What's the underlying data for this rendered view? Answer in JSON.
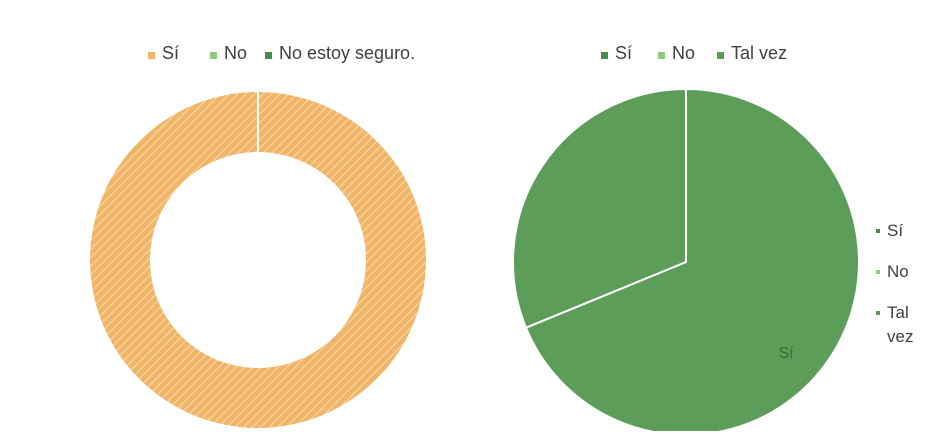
{
  "colors": {
    "orange": "#f0b567",
    "orange_hatch": "#fde7c7",
    "green_dark": "#3f8f46",
    "green_light": "#8dc97d",
    "green_mid": "#5c9d5a",
    "legend_text": "#404040",
    "data_label": "#2f6f35",
    "separator": "#ffffff"
  },
  "chart_data": [
    {
      "type": "pie",
      "variant": "donut",
      "legend_position": "top",
      "categories": [
        "Sí",
        "No",
        "No estoy seguro."
      ],
      "values": [
        100,
        0,
        0
      ],
      "series_colors": [
        "#f0b567",
        "#8dc97d",
        "#3f8f46"
      ],
      "pattern": "diagonal-hatch",
      "title": ""
    },
    {
      "type": "pie",
      "legend_position": "top",
      "categories": [
        "Sí",
        "No",
        "Tal vez"
      ],
      "values": [
        68.8,
        31.2,
        0
      ],
      "series_colors": [
        "#3f8f46",
        "#8dc97d",
        "#5c9d5a"
      ],
      "slice_color": "#5c9d5a",
      "data_labels": [
        "Sí"
      ],
      "title": "",
      "side_legend": {
        "position": "right",
        "items": [
          "Sí",
          "No",
          "Tal",
          "vez"
        ]
      }
    }
  ]
}
